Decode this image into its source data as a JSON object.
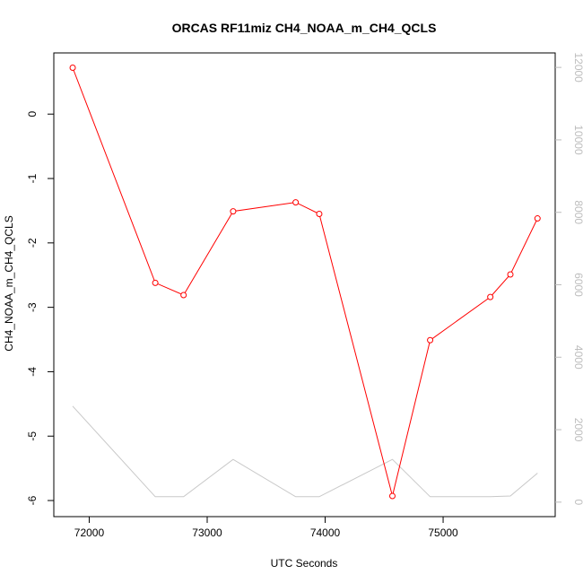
{
  "chart_data": {
    "type": "line",
    "title": "ORCAS RF11miz CH4_NOAA_m_CH4_QCLS",
    "xlabel": "UTC Seconds",
    "ylabel": "CH4_NOAA_m_CH4_QCLS",
    "xlim": [
      71700,
      75950
    ],
    "ylim": [
      -6.25,
      0.95
    ],
    "y2lim": [
      -400,
      12400
    ],
    "x_ticks": [
      72000,
      73000,
      74000,
      75000
    ],
    "y_ticks": [
      0,
      -1,
      -2,
      -3,
      -4,
      -5,
      -6
    ],
    "y2_ticks": [
      0,
      2000,
      4000,
      6000,
      8000,
      10000,
      12000
    ],
    "grid": false,
    "series": [
      {
        "axis": "left",
        "color": "#ff0000",
        "marker": "open-circle",
        "x": [
          71860,
          72560,
          72800,
          73220,
          73750,
          73950,
          74570,
          74890,
          75400,
          75570,
          75800
        ],
        "y": [
          0.72,
          -2.62,
          -2.81,
          -1.51,
          -1.37,
          -1.55,
          -5.93,
          -3.51,
          -2.84,
          -2.49,
          -1.62
        ]
      },
      {
        "axis": "right",
        "color": "#c8c8c8",
        "marker": "none",
        "x": [
          71860,
          72560,
          72800,
          73220,
          73750,
          73950,
          74570,
          74890,
          75400,
          75570,
          75800
        ],
        "y": [
          2650,
          150,
          150,
          1180,
          150,
          150,
          1180,
          150,
          150,
          170,
          800
        ]
      }
    ]
  }
}
